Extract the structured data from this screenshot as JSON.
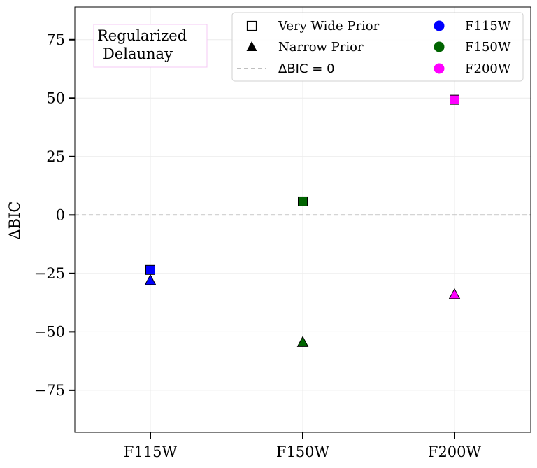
{
  "chart_data": {
    "type": "scatter",
    "title": "",
    "xlabel": "",
    "ylabel": "ΔBIC",
    "categories": [
      "F115W",
      "F150W",
      "F200W"
    ],
    "ylim": [
      -93,
      89
    ],
    "yticks": [
      -75,
      -50,
      -25,
      0,
      25,
      50,
      75
    ],
    "ytick_labels": [
      "−75",
      "−50",
      "−25",
      "0",
      "25",
      "50",
      "75"
    ],
    "grid": true,
    "reference_line": {
      "y": 0,
      "label": "ΔBIC = 0",
      "color": "#aaaaaa",
      "style": "dashed"
    },
    "annotation": {
      "line1": "Regularized",
      "line2": "Delaunay",
      "border_color": "#f4c8f4"
    },
    "series": [
      {
        "name": "Very Wide Prior",
        "marker": "square",
        "values": [
          -23.5,
          5.8,
          49.3
        ]
      },
      {
        "name": "Narrow Prior",
        "marker": "triangle",
        "values": [
          -28.0,
          -54.5,
          -34.0
        ]
      }
    ],
    "category_colors": {
      "F115W": "#0000ff",
      "F150W": "#006400",
      "F200W": "#ff00ff"
    },
    "legend": {
      "placement": "top-right",
      "entries": [
        {
          "label": "Very Wide Prior",
          "kind": "marker-square"
        },
        {
          "label": "Narrow Prior",
          "kind": "marker-triangle"
        },
        {
          "label": "ΔBIC = 0",
          "kind": "dashed-line"
        },
        {
          "label": "F115W",
          "kind": "color-dot",
          "color": "#0000ff"
        },
        {
          "label": "F150W",
          "kind": "color-dot",
          "color": "#006400"
        },
        {
          "label": "F200W",
          "kind": "color-dot",
          "color": "#ff00ff"
        }
      ]
    }
  }
}
